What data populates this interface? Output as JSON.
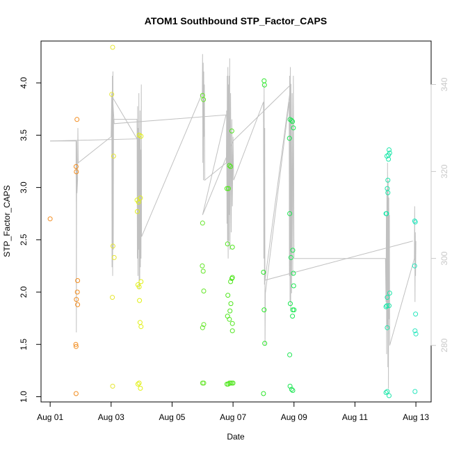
{
  "chart_data": {
    "type": "scatter",
    "title": "ATOM1 Southbound STP_Factor_CAPS",
    "xlabel": "Date",
    "ylabel": "STP_Factor_CAPS",
    "x_tick_labels": [
      "Aug 01",
      "Aug 03",
      "Aug 05",
      "Aug 07",
      "Aug 09",
      "Aug 11",
      "Aug 13"
    ],
    "x_tick_days": [
      1,
      3,
      5,
      7,
      9,
      11,
      13
    ],
    "xlim_days": [
      0.7,
      13.5
    ],
    "ylim": [
      0.95,
      4.4
    ],
    "y_ticks": [
      1.0,
      1.5,
      2.0,
      2.5,
      3.0,
      3.5,
      4.0
    ],
    "y_tick_labels": [
      "1.0",
      "1.5",
      "2.0",
      "2.5",
      "3.0",
      "3.5",
      "4.0"
    ],
    "y2_ticks": [
      280,
      300,
      320,
      340
    ],
    "y2_tick_labels": [
      "280",
      "300",
      "320",
      "340"
    ],
    "y2lim": [
      267,
      350
    ],
    "grid": false,
    "colors": {
      "aug01": "#f28c1e",
      "aug03": "#e6e632",
      "aug04": "#e1f014",
      "aug06": "#64e628",
      "aug07": "#50e61e",
      "aug08": "#2ae628",
      "aug09": "#19e650",
      "aug12": "#1ee6aa",
      "aug13": "#28e6be",
      "line": "#c0c0c0"
    },
    "series": [
      {
        "color_key": "aug01",
        "points": [
          {
            "x": 1.0,
            "y": 2.7
          },
          {
            "x": 1.85,
            "y": 3.2
          },
          {
            "x": 1.86,
            "y": 3.15
          },
          {
            "x": 1.88,
            "y": 3.65
          },
          {
            "x": 1.9,
            "y": 2.11
          },
          {
            "x": 1.89,
            "y": 2.0
          },
          {
            "x": 1.86,
            "y": 1.93
          },
          {
            "x": 1.9,
            "y": 1.88
          },
          {
            "x": 1.84,
            "y": 1.5
          },
          {
            "x": 1.85,
            "y": 1.48
          },
          {
            "x": 1.85,
            "y": 1.03
          }
        ]
      },
      {
        "color_key": "aug03",
        "points": [
          {
            "x": 3.05,
            "y": 4.34
          },
          {
            "x": 3.02,
            "y": 3.89
          },
          {
            "x": 3.08,
            "y": 3.3
          },
          {
            "x": 3.06,
            "y": 2.44
          },
          {
            "x": 3.1,
            "y": 2.33
          },
          {
            "x": 3.04,
            "y": 1.95
          },
          {
            "x": 3.05,
            "y": 1.1
          }
        ]
      },
      {
        "color_key": "aug04",
        "points": [
          {
            "x": 3.92,
            "y": 3.5
          },
          {
            "x": 3.98,
            "y": 3.49
          },
          {
            "x": 3.85,
            "y": 2.88
          },
          {
            "x": 3.9,
            "y": 2.86
          },
          {
            "x": 3.96,
            "y": 2.9
          },
          {
            "x": 3.86,
            "y": 2.77
          },
          {
            "x": 3.98,
            "y": 2.1
          },
          {
            "x": 3.92,
            "y": 2.05
          },
          {
            "x": 3.88,
            "y": 2.07
          },
          {
            "x": 3.93,
            "y": 1.92
          },
          {
            "x": 3.95,
            "y": 1.71
          },
          {
            "x": 3.98,
            "y": 1.67
          },
          {
            "x": 3.88,
            "y": 1.12
          },
          {
            "x": 3.92,
            "y": 1.13
          },
          {
            "x": 3.96,
            "y": 1.08
          }
        ]
      },
      {
        "color_key": "aug06",
        "points": [
          {
            "x": 6.0,
            "y": 3.88
          },
          {
            "x": 6.03,
            "y": 3.84
          },
          {
            "x": 6.0,
            "y": 2.66
          },
          {
            "x": 5.99,
            "y": 2.25
          },
          {
            "x": 6.02,
            "y": 2.2
          },
          {
            "x": 6.04,
            "y": 2.01
          },
          {
            "x": 6.04,
            "y": 1.69
          },
          {
            "x": 6.0,
            "y": 1.66
          },
          {
            "x": 6.0,
            "y": 1.13
          },
          {
            "x": 6.04,
            "y": 1.13
          }
        ]
      },
      {
        "color_key": "aug07",
        "points": [
          {
            "x": 6.8,
            "y": 2.99
          },
          {
            "x": 6.85,
            "y": 2.99
          },
          {
            "x": 6.88,
            "y": 3.21
          },
          {
            "x": 6.92,
            "y": 3.2
          },
          {
            "x": 6.96,
            "y": 3.54
          },
          {
            "x": 6.82,
            "y": 2.46
          },
          {
            "x": 6.98,
            "y": 2.43
          },
          {
            "x": 6.92,
            "y": 2.1
          },
          {
            "x": 6.96,
            "y": 2.13
          },
          {
            "x": 6.98,
            "y": 2.14
          },
          {
            "x": 6.83,
            "y": 1.97
          },
          {
            "x": 6.93,
            "y": 1.89
          },
          {
            "x": 6.9,
            "y": 1.82
          },
          {
            "x": 6.82,
            "y": 1.77
          },
          {
            "x": 6.88,
            "y": 1.74
          },
          {
            "x": 6.98,
            "y": 1.7
          },
          {
            "x": 6.98,
            "y": 1.63
          },
          {
            "x": 6.8,
            "y": 1.12
          },
          {
            "x": 6.84,
            "y": 1.12
          },
          {
            "x": 6.88,
            "y": 1.13
          },
          {
            "x": 6.92,
            "y": 1.13
          },
          {
            "x": 6.96,
            "y": 1.13
          },
          {
            "x": 7.0,
            "y": 1.13
          }
        ]
      },
      {
        "color_key": "aug08",
        "points": [
          {
            "x": 8.02,
            "y": 4.02
          },
          {
            "x": 8.03,
            "y": 3.98
          },
          {
            "x": 8.0,
            "y": 2.19
          },
          {
            "x": 8.02,
            "y": 1.83
          },
          {
            "x": 8.04,
            "y": 1.51
          },
          {
            "x": 8.0,
            "y": 1.03
          }
        ]
      },
      {
        "color_key": "aug09",
        "points": [
          {
            "x": 8.87,
            "y": 3.65
          },
          {
            "x": 8.92,
            "y": 3.64
          },
          {
            "x": 8.95,
            "y": 3.63
          },
          {
            "x": 8.98,
            "y": 3.57
          },
          {
            "x": 8.85,
            "y": 3.47
          },
          {
            "x": 8.86,
            "y": 2.75
          },
          {
            "x": 8.96,
            "y": 2.4
          },
          {
            "x": 8.9,
            "y": 2.33
          },
          {
            "x": 8.98,
            "y": 2.18
          },
          {
            "x": 8.99,
            "y": 2.06
          },
          {
            "x": 8.88,
            "y": 1.89
          },
          {
            "x": 9.0,
            "y": 1.83
          },
          {
            "x": 8.96,
            "y": 1.83
          },
          {
            "x": 8.95,
            "y": 1.77
          },
          {
            "x": 8.86,
            "y": 1.4
          },
          {
            "x": 8.87,
            "y": 1.1
          },
          {
            "x": 8.92,
            "y": 1.07
          },
          {
            "x": 8.96,
            "y": 1.06
          }
        ]
      },
      {
        "color_key": "aug12",
        "points": [
          {
            "x": 12.12,
            "y": 3.36
          },
          {
            "x": 12.14,
            "y": 3.33
          },
          {
            "x": 12.1,
            "y": 3.31
          },
          {
            "x": 12.05,
            "y": 3.3
          },
          {
            "x": 12.1,
            "y": 3.27
          },
          {
            "x": 12.08,
            "y": 3.07
          },
          {
            "x": 12.06,
            "y": 2.99
          },
          {
            "x": 12.08,
            "y": 2.95
          },
          {
            "x": 12.02,
            "y": 2.75
          },
          {
            "x": 12.04,
            "y": 2.75
          },
          {
            "x": 12.14,
            "y": 1.99
          },
          {
            "x": 12.06,
            "y": 1.95
          },
          {
            "x": 12.02,
            "y": 1.86
          },
          {
            "x": 12.05,
            "y": 1.87
          },
          {
            "x": 12.12,
            "y": 1.87
          },
          {
            "x": 12.06,
            "y": 1.66
          },
          {
            "x": 12.02,
            "y": 1.04
          },
          {
            "x": 12.06,
            "y": 1.05
          },
          {
            "x": 12.12,
            "y": 1.01
          }
        ]
      },
      {
        "color_key": "aug13",
        "points": [
          {
            "x": 12.96,
            "y": 2.68
          },
          {
            "x": 12.98,
            "y": 2.67
          },
          {
            "x": 12.96,
            "y": 2.25
          },
          {
            "x": 12.99,
            "y": 1.79
          },
          {
            "x": 12.97,
            "y": 1.63
          },
          {
            "x": 13.0,
            "y": 1.6
          },
          {
            "x": 12.97,
            "y": 1.05
          }
        ]
      }
    ],
    "line_series_y2": [
      [
        1.0,
        327.0
      ],
      [
        1.85,
        327.0
      ],
      [
        1.85,
        320.0
      ],
      [
        1.86,
        311.0
      ],
      [
        1.86,
        283.0
      ],
      [
        1.87,
        327.0
      ],
      [
        1.88,
        315.0
      ],
      [
        1.9,
        318.0
      ],
      [
        1.91,
        330.0
      ],
      [
        1.92,
        322.0
      ],
      [
        3.0,
        328.0
      ],
      [
        3.02,
        338.0
      ],
      [
        3.03,
        298.0
      ],
      [
        3.04,
        342.0
      ],
      [
        3.05,
        296.0
      ],
      [
        3.06,
        343.0
      ],
      [
        3.07,
        302.0
      ],
      [
        3.08,
        332.0
      ],
      [
        3.85,
        332.0
      ],
      [
        3.86,
        300.0
      ],
      [
        3.87,
        335.0
      ],
      [
        3.88,
        296.0
      ],
      [
        3.89,
        330.0
      ],
      [
        3.9,
        302.0
      ],
      [
        3.91,
        338.0
      ],
      [
        3.92,
        293.0
      ],
      [
        3.93,
        328.0
      ],
      [
        3.94,
        295.0
      ],
      [
        3.95,
        334.0
      ],
      [
        3.96,
        298.0
      ],
      [
        3.97,
        325.0
      ],
      [
        3.98,
        300.0
      ],
      [
        3.99,
        340.0
      ],
      [
        4.0,
        305.0
      ],
      [
        5.99,
        338.0
      ],
      [
        6.0,
        347.0
      ],
      [
        6.01,
        322.0
      ],
      [
        6.02,
        345.0
      ],
      [
        6.03,
        318.0
      ],
      [
        6.04,
        343.0
      ],
      [
        6.05,
        328.0
      ],
      [
        6.06,
        340.0
      ],
      [
        6.07,
        318.0
      ],
      [
        6.78,
        322.0
      ],
      [
        6.79,
        334.0
      ],
      [
        6.8,
        308.0
      ],
      [
        6.81,
        342.0
      ],
      [
        6.82,
        304.0
      ],
      [
        6.83,
        344.0
      ],
      [
        6.84,
        300.0
      ],
      [
        6.85,
        340.0
      ],
      [
        6.86,
        304.0
      ],
      [
        6.87,
        342.0
      ],
      [
        6.88,
        310.0
      ],
      [
        6.89,
        346.0
      ],
      [
        6.9,
        302.0
      ],
      [
        6.92,
        338.0
      ],
      [
        6.94,
        306.0
      ],
      [
        6.96,
        332.0
      ],
      [
        6.98,
        312.0
      ],
      [
        7.0,
        328.0
      ],
      [
        7.02,
        318.0
      ],
      [
        8.0,
        336.0
      ],
      [
        8.01,
        300.0
      ],
      [
        8.02,
        340.0
      ],
      [
        8.03,
        294.0
      ],
      [
        8.04,
        330.0
      ],
      [
        8.05,
        280.0
      ],
      [
        8.06,
        292.0
      ],
      [
        8.84,
        336.0
      ],
      [
        8.85,
        296.0
      ],
      [
        8.86,
        342.0
      ],
      [
        8.87,
        290.0
      ],
      [
        8.88,
        344.0
      ],
      [
        8.89,
        288.0
      ],
      [
        8.9,
        340.0
      ],
      [
        8.92,
        292.0
      ],
      [
        8.94,
        338.0
      ],
      [
        8.96,
        296.0
      ],
      [
        8.98,
        342.0
      ],
      [
        9.0,
        300.0
      ],
      [
        12.0,
        300.0
      ],
      [
        12.02,
        290.0
      ],
      [
        12.03,
        310.0
      ],
      [
        12.04,
        278.0
      ],
      [
        12.05,
        316.0
      ],
      [
        12.06,
        284.0
      ],
      [
        12.07,
        322.0
      ],
      [
        12.08,
        275.0
      ],
      [
        12.09,
        318.0
      ],
      [
        12.1,
        270.0
      ],
      [
        12.11,
        314.0
      ],
      [
        12.12,
        286.0
      ],
      [
        12.13,
        310.0
      ],
      [
        12.14,
        280.0
      ],
      [
        12.95,
        300.0
      ],
      [
        12.96,
        312.0
      ],
      [
        12.97,
        290.0
      ],
      [
        12.98,
        306.0
      ],
      [
        12.99,
        296.0
      ],
      [
        13.0,
        304.0
      ]
    ],
    "trend_line_y2": [
      [
        1.0,
        327.0
      ],
      [
        3.85,
        327.5
      ],
      [
        3.05,
        337.0
      ],
      [
        3.1,
        331.0
      ],
      [
        6.77,
        333.0
      ],
      [
        6.0,
        310.0
      ],
      [
        7.0,
        327.0
      ],
      [
        8.9,
        340.0
      ],
      [
        8.05,
        295.0
      ],
      [
        12.9,
        304.0
      ]
    ]
  }
}
